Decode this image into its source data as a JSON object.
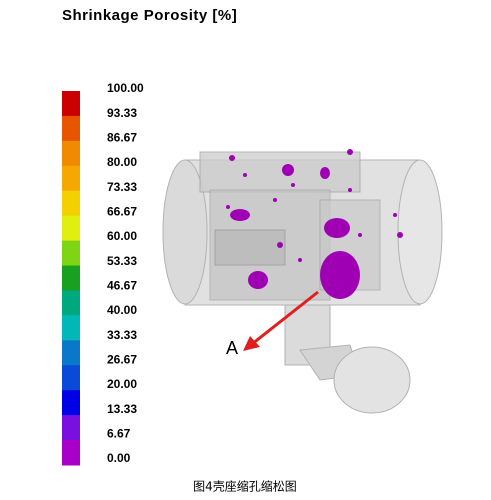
{
  "title": "Shrinkage  Porosity  [%]",
  "legend": {
    "labels": [
      "100.00",
      "93.33",
      "86.67",
      "80.00",
      "73.33",
      "66.67",
      "60.00",
      "53.33",
      "46.67",
      "40.00",
      "33.33",
      "26.67",
      "20.00",
      "13.33",
      "6.67",
      "0.00"
    ],
    "colors": [
      "#cc0000",
      "#e85500",
      "#f08a00",
      "#f5a800",
      "#f5d000",
      "#e0ee10",
      "#7fd414",
      "#18a020",
      "#00a880",
      "#00b8b8",
      "#0a78c8",
      "#0a4ad8",
      "#0000e6",
      "#7a10e0",
      "#a800c8"
    ]
  },
  "annotation": "A",
  "caption": "图4壳座缩孔缩松图"
}
